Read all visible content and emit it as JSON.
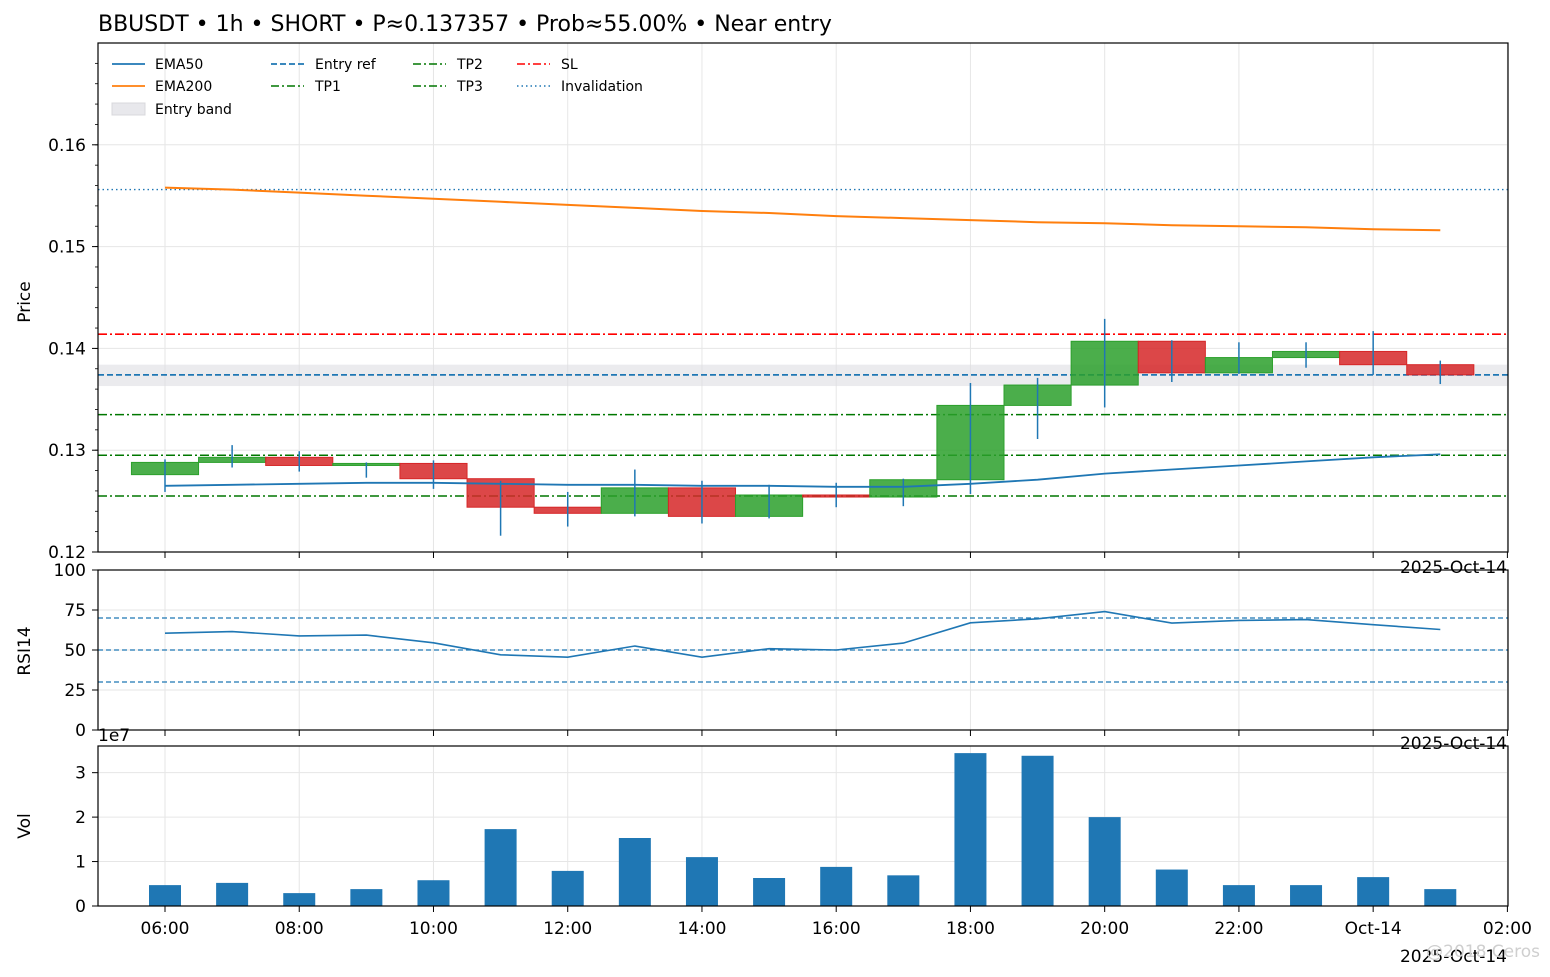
{
  "title": "BBUSDT • 1h • SHORT • P≈0.137357 • Prob≈55.00% • Near entry",
  "colors": {
    "up": "#2ca02c",
    "down": "#d62728",
    "ema50": "#1f77b4",
    "ema200": "#ff7f0e",
    "entry": "#1f77b4",
    "tp": "#007700",
    "sl": "#ff0000",
    "invalidation": "#1f77b4",
    "band": "#dddde3",
    "volume": "#1f77b4",
    "grid": "#e6e6e6"
  },
  "legend": {
    "ema50": "EMA50",
    "ema200": "EMA200",
    "band": "Entry band",
    "entry": "Entry ref",
    "tp1": "TP1",
    "tp2": "TP2",
    "tp3": "TP3",
    "sl": "SL",
    "invalidation": "Invalidation"
  },
  "x_ticks": [
    "06:00",
    "08:00",
    "10:00",
    "12:00",
    "14:00",
    "16:00",
    "18:00",
    "20:00",
    "22:00",
    "Oct-14",
    "02:00"
  ],
  "x_offset_label": "2025-Oct-14",
  "watermark": "@2018 Ceros",
  "chart_data": [
    {
      "type": "candlestick",
      "ylabel": "Price",
      "ylim": [
        0.12,
        0.17
      ],
      "yticks": [
        "0.12",
        "0.13",
        "0.14",
        "0.15",
        "0.16"
      ],
      "x": [
        "06:00",
        "07:00",
        "08:00",
        "09:00",
        "10:00",
        "11:00",
        "12:00",
        "13:00",
        "14:00",
        "15:00",
        "16:00",
        "17:00",
        "18:00",
        "19:00",
        "20:00",
        "21:00",
        "22:00",
        "23:00",
        "00:00",
        "01:00"
      ],
      "candles": [
        {
          "open": 0.1276,
          "high": 0.1291,
          "low": 0.1259,
          "close": 0.1288
        },
        {
          "open": 0.1288,
          "high": 0.1305,
          "low": 0.1283,
          "close": 0.1293
        },
        {
          "open": 0.1293,
          "high": 0.1299,
          "low": 0.1279,
          "close": 0.1285
        },
        {
          "open": 0.1285,
          "high": 0.1288,
          "low": 0.1273,
          "close": 0.1287
        },
        {
          "open": 0.1287,
          "high": 0.129,
          "low": 0.1262,
          "close": 0.1272
        },
        {
          "open": 0.1272,
          "high": 0.127,
          "low": 0.1216,
          "close": 0.1244
        },
        {
          "open": 0.1244,
          "high": 0.1259,
          "low": 0.1225,
          "close": 0.1238
        },
        {
          "open": 0.1238,
          "high": 0.1281,
          "low": 0.1235,
          "close": 0.1263
        },
        {
          "open": 0.1263,
          "high": 0.127,
          "low": 0.1228,
          "close": 0.1235
        },
        {
          "open": 0.1235,
          "high": 0.1266,
          "low": 0.1233,
          "close": 0.1256
        },
        {
          "open": 0.1256,
          "high": 0.1268,
          "low": 0.1244,
          "close": 0.1254
        },
        {
          "open": 0.1254,
          "high": 0.1272,
          "low": 0.1245,
          "close": 0.1271
        },
        {
          "open": 0.1271,
          "high": 0.1366,
          "low": 0.1257,
          "close": 0.1344
        },
        {
          "open": 0.1344,
          "high": 0.1371,
          "low": 0.1311,
          "close": 0.1364
        },
        {
          "open": 0.1364,
          "high": 0.1429,
          "low": 0.1342,
          "close": 0.1407
        },
        {
          "open": 0.1407,
          "high": 0.1408,
          "low": 0.1367,
          "close": 0.1376
        },
        {
          "open": 0.1376,
          "high": 0.1406,
          "low": 0.1375,
          "close": 0.1391
        },
        {
          "open": 0.1391,
          "high": 0.1406,
          "low": 0.1381,
          "close": 0.1397
        },
        {
          "open": 0.1397,
          "high": 0.1417,
          "low": 0.1374,
          "close": 0.1384
        },
        {
          "open": 0.1384,
          "high": 0.1388,
          "low": 0.1365,
          "close": 0.1374
        }
      ],
      "ema50": [
        0.1265,
        0.1266,
        0.1267,
        0.1268,
        0.1268,
        0.1267,
        0.1266,
        0.1266,
        0.1265,
        0.1265,
        0.1264,
        0.1264,
        0.1267,
        0.1271,
        0.1277,
        0.1281,
        0.1285,
        0.1289,
        0.1293,
        0.1296
      ],
      "ema200": [
        0.1558,
        0.1556,
        0.1553,
        0.155,
        0.1547,
        0.1544,
        0.1541,
        0.1538,
        0.1535,
        0.1533,
        0.153,
        0.1528,
        0.1526,
        0.1524,
        0.1523,
        0.1521,
        0.152,
        0.1519,
        0.1517,
        0.1516
      ],
      "levels": {
        "entry_band": [
          0.1363,
          0.1384
        ],
        "entry": 0.1374,
        "tp1": 0.1295,
        "tp2": 0.1255,
        "tp3": 0.1335,
        "sl": 0.1414,
        "invalidation": 0.1556
      }
    },
    {
      "type": "line",
      "ylabel": "RSI14",
      "ylim": [
        0,
        100
      ],
      "yticks": [
        "0",
        "25",
        "50",
        "75",
        "100"
      ],
      "reference_lines": [
        30,
        50,
        70
      ],
      "values": [
        60.5,
        61.5,
        58.8,
        59.3,
        54.5,
        47.0,
        45.5,
        52.5,
        45.5,
        50.8,
        50.0,
        54.3,
        67.0,
        69.5,
        74.0,
        66.8,
        68.5,
        69.0,
        65.8,
        62.8
      ]
    },
    {
      "type": "bar",
      "ylabel": "Vol",
      "scale_label": "1e7",
      "ylim": [
        0,
        3.6
      ],
      "yticks": [
        "0",
        "1",
        "2",
        "3"
      ],
      "values": [
        0.47,
        0.52,
        0.29,
        0.38,
        0.58,
        1.73,
        0.79,
        1.53,
        1.1,
        0.63,
        0.88,
        0.69,
        3.44,
        3.38,
        2.0,
        0.82,
        0.47,
        0.47,
        0.65,
        0.38
      ]
    }
  ]
}
